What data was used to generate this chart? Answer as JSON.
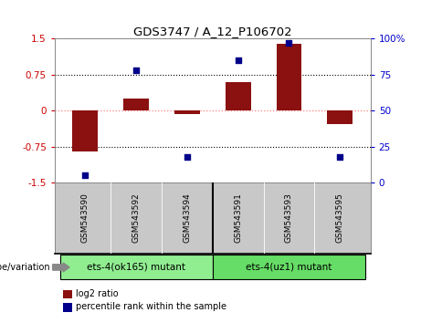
{
  "title": "GDS3747 / A_12_P106702",
  "samples": [
    "GSM543590",
    "GSM543592",
    "GSM543594",
    "GSM543591",
    "GSM543593",
    "GSM543595"
  ],
  "log2_ratio": [
    -0.85,
    0.25,
    -0.08,
    0.6,
    1.4,
    -0.28
  ],
  "percentile_rank": [
    5,
    78,
    18,
    85,
    97,
    18
  ],
  "groups": [
    {
      "label": "ets-4(ok165) mutant",
      "color": "#90EE90"
    },
    {
      "label": "ets-4(uz1) mutant",
      "color": "#66DD66"
    }
  ],
  "bar_color": "#8B1010",
  "dot_color": "#00008B",
  "ylim_left": [
    -1.5,
    1.5
  ],
  "ylim_right": [
    0,
    100
  ],
  "yticks_left": [
    -1.5,
    -0.75,
    0,
    0.75,
    1.5
  ],
  "yticks_right": [
    0,
    25,
    50,
    75,
    100
  ],
  "zero_line_color": "#FF8080",
  "dotted_line_color": "black",
  "bar_width": 0.5,
  "legend_items": [
    {
      "label": "log2 ratio",
      "color": "#8B1010"
    },
    {
      "label": "percentile rank within the sample",
      "color": "#00008B"
    }
  ],
  "genotype_label": "genotype/variation",
  "background_color": "#ffffff",
  "sample_panel_color": "#C8C8C8",
  "tick_label_color_left": "#CC0000",
  "tick_label_color_right": "#0000CC"
}
